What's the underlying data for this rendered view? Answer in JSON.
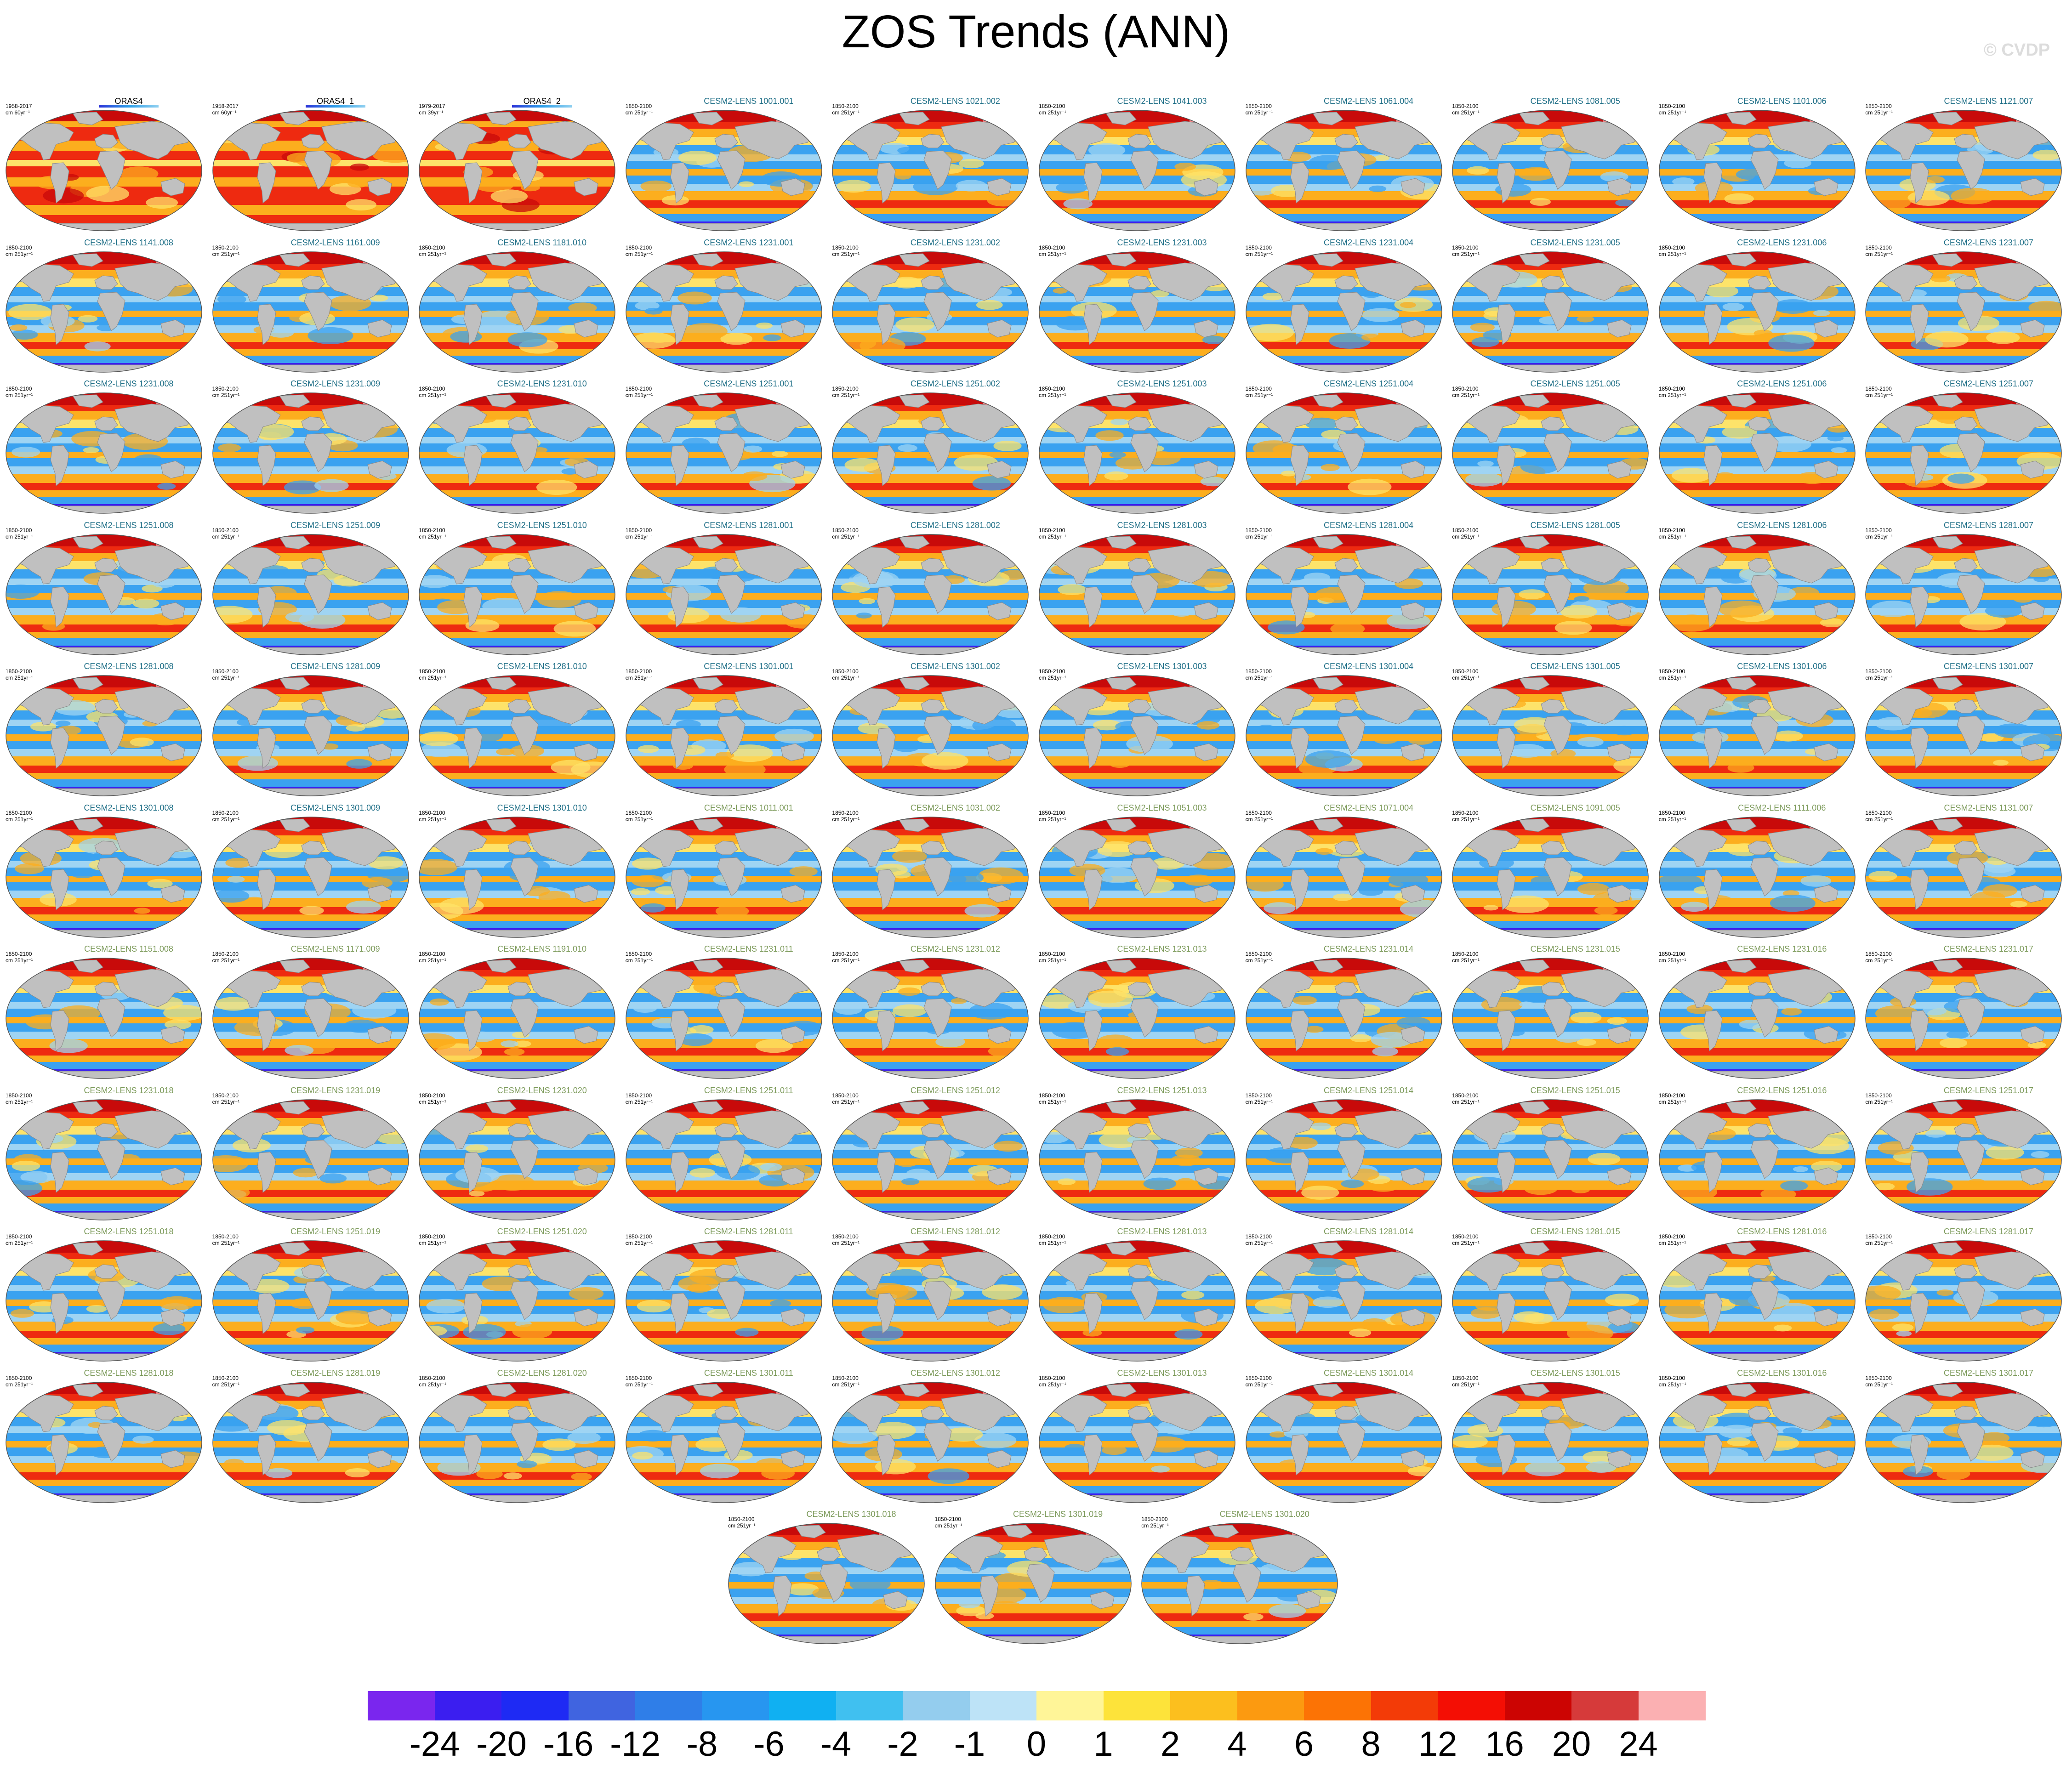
{
  "title": "ZOS Trends (ANN)",
  "watermark": "© CVDP",
  "colors": {
    "land": "#c0c0c0",
    "outline": "#8a8a8a",
    "strong_neg": "#3b1ef0",
    "mid_neg": "#3aa2f0",
    "weak_neg": "#9fd4f3",
    "weak_pos": "#fde36a",
    "mid_pos": "#fcae1e",
    "strong_pos": "#ee2a10",
    "very_pos": "#c80a0a",
    "pink": "#f7a9aa"
  },
  "colorbar": {
    "colors": [
      "#7a26ee",
      "#3b1ef0",
      "#1e2af4",
      "#4064e0",
      "#2f7ee8",
      "#2796f0",
      "#10b0f2",
      "#40c0f0",
      "#94cdee",
      "#bde3f7",
      "#fff598",
      "#fde33a",
      "#fcbf1e",
      "#fc9a10",
      "#fc7305",
      "#f33b07",
      "#f40e04",
      "#cc0402",
      "#d63a3a",
      "#fbb0b2"
    ],
    "labels": [
      "-24",
      "-20",
      "-16",
      "-12",
      "-8",
      "-6",
      "-4",
      "-2",
      "-1",
      "0",
      "1",
      "2",
      "4",
      "6",
      "8",
      "12",
      "16",
      "20",
      "24"
    ]
  },
  "panels": [
    {
      "title": "ORAS4",
      "period": "1958-2017",
      "units": "cm 60yr⁻¹",
      "kind": "obs"
    },
    {
      "title": "ORAS4_1",
      "period": "1958-2017",
      "units": "cm 60yr⁻¹",
      "kind": "obs"
    },
    {
      "title": "ORAS4_2",
      "period": "1979-2017",
      "units": "cm 39yr⁻¹",
      "kind": "obs"
    },
    {
      "title": "CESM2-LENS 1001.001",
      "period": "1850-2100",
      "units": "cm 251yr⁻¹",
      "kind": "model"
    },
    {
      "title": "CESM2-LENS 1021.002",
      "period": "1850-2100",
      "units": "cm 251yr⁻¹",
      "kind": "model"
    },
    {
      "title": "CESM2-LENS 1041.003",
      "period": "1850-2100",
      "units": "cm 251yr⁻¹",
      "kind": "model"
    },
    {
      "title": "CESM2-LENS 1061.004",
      "period": "1850-2100",
      "units": "cm 251yr⁻¹",
      "kind": "model"
    },
    {
      "title": "CESM2-LENS 1081.005",
      "period": "1850-2100",
      "units": "cm 251yr⁻¹",
      "kind": "model"
    },
    {
      "title": "CESM2-LENS 1101.006",
      "period": "1850-2100",
      "units": "cm 251yr⁻¹",
      "kind": "model"
    },
    {
      "title": "CESM2-LENS 1121.007",
      "period": "1850-2100",
      "units": "cm 251yr⁻¹",
      "kind": "model"
    },
    {
      "title": "CESM2-LENS 1141.008",
      "period": "1850-2100",
      "units": "cm 251yr⁻¹",
      "kind": "model"
    },
    {
      "title": "CESM2-LENS 1161.009",
      "period": "1850-2100",
      "units": "cm 251yr⁻¹",
      "kind": "model"
    },
    {
      "title": "CESM2-LENS 1181.010",
      "period": "1850-2100",
      "units": "cm 251yr⁻¹",
      "kind": "model"
    },
    {
      "title": "CESM2-LENS 1231.001",
      "period": "1850-2100",
      "units": "cm 251yr⁻¹",
      "kind": "model"
    },
    {
      "title": "CESM2-LENS 1231.002",
      "period": "1850-2100",
      "units": "cm 251yr⁻¹",
      "kind": "model"
    },
    {
      "title": "CESM2-LENS 1231.003",
      "period": "1850-2100",
      "units": "cm 251yr⁻¹",
      "kind": "model"
    },
    {
      "title": "CESM2-LENS 1231.004",
      "period": "1850-2100",
      "units": "cm 251yr⁻¹",
      "kind": "model"
    },
    {
      "title": "CESM2-LENS 1231.005",
      "period": "1850-2100",
      "units": "cm 251yr⁻¹",
      "kind": "model"
    },
    {
      "title": "CESM2-LENS 1231.006",
      "period": "1850-2100",
      "units": "cm 251yr⁻¹",
      "kind": "model"
    },
    {
      "title": "CESM2-LENS 1231.007",
      "period": "1850-2100",
      "units": "cm 251yr⁻¹",
      "kind": "model"
    },
    {
      "title": "CESM2-LENS 1231.008",
      "period": "1850-2100",
      "units": "cm 251yr⁻¹",
      "kind": "model"
    },
    {
      "title": "CESM2-LENS 1231.009",
      "period": "1850-2100",
      "units": "cm 251yr⁻¹",
      "kind": "model"
    },
    {
      "title": "CESM2-LENS 1231.010",
      "period": "1850-2100",
      "units": "cm 251yr⁻¹",
      "kind": "model"
    },
    {
      "title": "CESM2-LENS 1251.001",
      "period": "1850-2100",
      "units": "cm 251yr⁻¹",
      "kind": "model"
    },
    {
      "title": "CESM2-LENS 1251.002",
      "period": "1850-2100",
      "units": "cm 251yr⁻¹",
      "kind": "model"
    },
    {
      "title": "CESM2-LENS 1251.003",
      "period": "1850-2100",
      "units": "cm 251yr⁻¹",
      "kind": "model"
    },
    {
      "title": "CESM2-LENS 1251.004",
      "period": "1850-2100",
      "units": "cm 251yr⁻¹",
      "kind": "model"
    },
    {
      "title": "CESM2-LENS 1251.005",
      "period": "1850-2100",
      "units": "cm 251yr⁻¹",
      "kind": "model"
    },
    {
      "title": "CESM2-LENS 1251.006",
      "period": "1850-2100",
      "units": "cm 251yr⁻¹",
      "kind": "model"
    },
    {
      "title": "CESM2-LENS 1251.007",
      "period": "1850-2100",
      "units": "cm 251yr⁻¹",
      "kind": "model"
    },
    {
      "title": "CESM2-LENS 1251.008",
      "period": "1850-2100",
      "units": "cm 251yr⁻¹",
      "kind": "model"
    },
    {
      "title": "CESM2-LENS 1251.009",
      "period": "1850-2100",
      "units": "cm 251yr⁻¹",
      "kind": "model"
    },
    {
      "title": "CESM2-LENS 1251.010",
      "period": "1850-2100",
      "units": "cm 251yr⁻¹",
      "kind": "model"
    },
    {
      "title": "CESM2-LENS 1281.001",
      "period": "1850-2100",
      "units": "cm 251yr⁻¹",
      "kind": "model"
    },
    {
      "title": "CESM2-LENS 1281.002",
      "period": "1850-2100",
      "units": "cm 251yr⁻¹",
      "kind": "model"
    },
    {
      "title": "CESM2-LENS 1281.003",
      "period": "1850-2100",
      "units": "cm 251yr⁻¹",
      "kind": "model"
    },
    {
      "title": "CESM2-LENS 1281.004",
      "period": "1850-2100",
      "units": "cm 251yr⁻¹",
      "kind": "model"
    },
    {
      "title": "CESM2-LENS 1281.005",
      "period": "1850-2100",
      "units": "cm 251yr⁻¹",
      "kind": "model"
    },
    {
      "title": "CESM2-LENS 1281.006",
      "period": "1850-2100",
      "units": "cm 251yr⁻¹",
      "kind": "model"
    },
    {
      "title": "CESM2-LENS 1281.007",
      "period": "1850-2100",
      "units": "cm 251yr⁻¹",
      "kind": "model"
    },
    {
      "title": "CESM2-LENS 1281.008",
      "period": "1850-2100",
      "units": "cm 251yr⁻¹",
      "kind": "model"
    },
    {
      "title": "CESM2-LENS 1281.009",
      "period": "1850-2100",
      "units": "cm 251yr⁻¹",
      "kind": "model"
    },
    {
      "title": "CESM2-LENS 1281.010",
      "period": "1850-2100",
      "units": "cm 251yr⁻¹",
      "kind": "model"
    },
    {
      "title": "CESM2-LENS 1301.001",
      "period": "1850-2100",
      "units": "cm 251yr⁻¹",
      "kind": "model"
    },
    {
      "title": "CESM2-LENS 1301.002",
      "period": "1850-2100",
      "units": "cm 251yr⁻¹",
      "kind": "model"
    },
    {
      "title": "CESM2-LENS 1301.003",
      "period": "1850-2100",
      "units": "cm 251yr⁻¹",
      "kind": "model"
    },
    {
      "title": "CESM2-LENS 1301.004",
      "period": "1850-2100",
      "units": "cm 251yr⁻¹",
      "kind": "model"
    },
    {
      "title": "CESM2-LENS 1301.005",
      "period": "1850-2100",
      "units": "cm 251yr⁻¹",
      "kind": "model"
    },
    {
      "title": "CESM2-LENS 1301.006",
      "period": "1850-2100",
      "units": "cm 251yr⁻¹",
      "kind": "model"
    },
    {
      "title": "CESM2-LENS 1301.007",
      "period": "1850-2100",
      "units": "cm 251yr⁻¹",
      "kind": "model"
    },
    {
      "title": "CESM2-LENS 1301.008",
      "period": "1850-2100",
      "units": "cm 251yr⁻¹",
      "kind": "model"
    },
    {
      "title": "CESM2-LENS 1301.009",
      "period": "1850-2100",
      "units": "cm 251yr⁻¹",
      "kind": "model"
    },
    {
      "title": "CESM2-LENS 1301.010",
      "period": "1850-2100",
      "units": "cm 251yr⁻¹",
      "kind": "model"
    },
    {
      "title": "CESM2-LENS 1011.001",
      "period": "1850-2100",
      "units": "cm 251yr⁻¹",
      "kind": "model-b"
    },
    {
      "title": "CESM2-LENS 1031.002",
      "period": "1850-2100",
      "units": "cm 251yr⁻¹",
      "kind": "model-b"
    },
    {
      "title": "CESM2-LENS 1051.003",
      "period": "1850-2100",
      "units": "cm 251yr⁻¹",
      "kind": "model-b"
    },
    {
      "title": "CESM2-LENS 1071.004",
      "period": "1850-2100",
      "units": "cm 251yr⁻¹",
      "kind": "model-b"
    },
    {
      "title": "CESM2-LENS 1091.005",
      "period": "1850-2100",
      "units": "cm 251yr⁻¹",
      "kind": "model-b"
    },
    {
      "title": "CESM2-LENS 1111.006",
      "period": "1850-2100",
      "units": "cm 251yr⁻¹",
      "kind": "model-b"
    },
    {
      "title": "CESM2-LENS 1131.007",
      "period": "1850-2100",
      "units": "cm 251yr⁻¹",
      "kind": "model-b"
    },
    {
      "title": "CESM2-LENS 1151.008",
      "period": "1850-2100",
      "units": "cm 251yr⁻¹",
      "kind": "model-b"
    },
    {
      "title": "CESM2-LENS 1171.009",
      "period": "1850-2100",
      "units": "cm 251yr⁻¹",
      "kind": "model-b"
    },
    {
      "title": "CESM2-LENS 1191.010",
      "period": "1850-2100",
      "units": "cm 251yr⁻¹",
      "kind": "model-b"
    },
    {
      "title": "CESM2-LENS 1231.011",
      "period": "1850-2100",
      "units": "cm 251yr⁻¹",
      "kind": "model-b"
    },
    {
      "title": "CESM2-LENS 1231.012",
      "period": "1850-2100",
      "units": "cm 251yr⁻¹",
      "kind": "model-b"
    },
    {
      "title": "CESM2-LENS 1231.013",
      "period": "1850-2100",
      "units": "cm 251yr⁻¹",
      "kind": "model-b"
    },
    {
      "title": "CESM2-LENS 1231.014",
      "period": "1850-2100",
      "units": "cm 251yr⁻¹",
      "kind": "model-b"
    },
    {
      "title": "CESM2-LENS 1231.015",
      "period": "1850-2100",
      "units": "cm 251yr⁻¹",
      "kind": "model-b"
    },
    {
      "title": "CESM2-LENS 1231.016",
      "period": "1850-2100",
      "units": "cm 251yr⁻¹",
      "kind": "model-b"
    },
    {
      "title": "CESM2-LENS 1231.017",
      "period": "1850-2100",
      "units": "cm 251yr⁻¹",
      "kind": "model-b"
    },
    {
      "title": "CESM2-LENS 1231.018",
      "period": "1850-2100",
      "units": "cm 251yr⁻¹",
      "kind": "model-b"
    },
    {
      "title": "CESM2-LENS 1231.019",
      "period": "1850-2100",
      "units": "cm 251yr⁻¹",
      "kind": "model-b"
    },
    {
      "title": "CESM2-LENS 1231.020",
      "period": "1850-2100",
      "units": "cm 251yr⁻¹",
      "kind": "model-b"
    },
    {
      "title": "CESM2-LENS 1251.011",
      "period": "1850-2100",
      "units": "cm 251yr⁻¹",
      "kind": "model-b"
    },
    {
      "title": "CESM2-LENS 1251.012",
      "period": "1850-2100",
      "units": "cm 251yr⁻¹",
      "kind": "model-b"
    },
    {
      "title": "CESM2-LENS 1251.013",
      "period": "1850-2100",
      "units": "cm 251yr⁻¹",
      "kind": "model-b"
    },
    {
      "title": "CESM2-LENS 1251.014",
      "period": "1850-2100",
      "units": "cm 251yr⁻¹",
      "kind": "model-b"
    },
    {
      "title": "CESM2-LENS 1251.015",
      "period": "1850-2100",
      "units": "cm 251yr⁻¹",
      "kind": "model-b"
    },
    {
      "title": "CESM2-LENS 1251.016",
      "period": "1850-2100",
      "units": "cm 251yr⁻¹",
      "kind": "model-b"
    },
    {
      "title": "CESM2-LENS 1251.017",
      "period": "1850-2100",
      "units": "cm 251yr⁻¹",
      "kind": "model-b"
    },
    {
      "title": "CESM2-LENS 1251.018",
      "period": "1850-2100",
      "units": "cm 251yr⁻¹",
      "kind": "model-b"
    },
    {
      "title": "CESM2-LENS 1251.019",
      "period": "1850-2100",
      "units": "cm 251yr⁻¹",
      "kind": "model-b"
    },
    {
      "title": "CESM2-LENS 1251.020",
      "period": "1850-2100",
      "units": "cm 251yr⁻¹",
      "kind": "model-b"
    },
    {
      "title": "CESM2-LENS 1281.011",
      "period": "1850-2100",
      "units": "cm 251yr⁻¹",
      "kind": "model-b"
    },
    {
      "title": "CESM2-LENS 1281.012",
      "period": "1850-2100",
      "units": "cm 251yr⁻¹",
      "kind": "model-b"
    },
    {
      "title": "CESM2-LENS 1281.013",
      "period": "1850-2100",
      "units": "cm 251yr⁻¹",
      "kind": "model-b"
    },
    {
      "title": "CESM2-LENS 1281.014",
      "period": "1850-2100",
      "units": "cm 251yr⁻¹",
      "kind": "model-b"
    },
    {
      "title": "CESM2-LENS 1281.015",
      "period": "1850-2100",
      "units": "cm 251yr⁻¹",
      "kind": "model-b"
    },
    {
      "title": "CESM2-LENS 1281.016",
      "period": "1850-2100",
      "units": "cm 251yr⁻¹",
      "kind": "model-b"
    },
    {
      "title": "CESM2-LENS 1281.017",
      "period": "1850-2100",
      "units": "cm 251yr⁻¹",
      "kind": "model-b"
    },
    {
      "title": "CESM2-LENS 1281.018",
      "period": "1850-2100",
      "units": "cm 251yr⁻¹",
      "kind": "model-b"
    },
    {
      "title": "CESM2-LENS 1281.019",
      "period": "1850-2100",
      "units": "cm 251yr⁻¹",
      "kind": "model-b"
    },
    {
      "title": "CESM2-LENS 1281.020",
      "period": "1850-2100",
      "units": "cm 251yr⁻¹",
      "kind": "model-b"
    },
    {
      "title": "CESM2-LENS 1301.011",
      "period": "1850-2100",
      "units": "cm 251yr⁻¹",
      "kind": "model-b"
    },
    {
      "title": "CESM2-LENS 1301.012",
      "period": "1850-2100",
      "units": "cm 251yr⁻¹",
      "kind": "model-b"
    },
    {
      "title": "CESM2-LENS 1301.013",
      "period": "1850-2100",
      "units": "cm 251yr⁻¹",
      "kind": "model-b"
    },
    {
      "title": "CESM2-LENS 1301.014",
      "period": "1850-2100",
      "units": "cm 251yr⁻¹",
      "kind": "model-b"
    },
    {
      "title": "CESM2-LENS 1301.015",
      "period": "1850-2100",
      "units": "cm 251yr⁻¹",
      "kind": "model-b"
    },
    {
      "title": "CESM2-LENS 1301.016",
      "period": "1850-2100",
      "units": "cm 251yr⁻¹",
      "kind": "model-b"
    },
    {
      "title": "CESM2-LENS 1301.017",
      "period": "1850-2100",
      "units": "cm 251yr⁻¹",
      "kind": "model-b"
    },
    {
      "title": "CESM2-LENS 1301.018",
      "period": "1850-2100",
      "units": "cm 251yr⁻¹",
      "kind": "model-b"
    },
    {
      "title": "CESM2-LENS 1301.019",
      "period": "1850-2100",
      "units": "cm 251yr⁻¹",
      "kind": "model-b"
    },
    {
      "title": "CESM2-LENS 1301.020",
      "period": "1850-2100",
      "units": "cm 251yr⁻¹",
      "kind": "model-b"
    }
  ]
}
